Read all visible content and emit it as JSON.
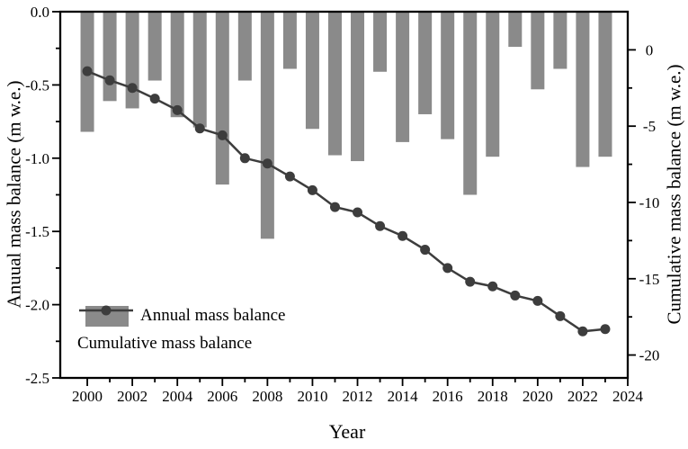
{
  "figure": {
    "colors": {
      "background": "#ffffff",
      "bar": "#8a8a8a",
      "line": "#3d3d3d",
      "axis": "#000000"
    }
  },
  "chart_data": {
    "type": "bar",
    "title": "",
    "categories": [
      2000,
      2001,
      2002,
      2003,
      2004,
      2005,
      2006,
      2007,
      2008,
      2009,
      2010,
      2011,
      2012,
      2013,
      2014,
      2015,
      2016,
      2017,
      2018,
      2019,
      2020,
      2021,
      2022,
      2023
    ],
    "series": [
      {
        "name": "Annual mass balance",
        "type": "bar",
        "axis": "left",
        "values": [
          -0.82,
          -0.61,
          -0.66,
          -0.47,
          -0.72,
          -0.79,
          -1.18,
          -0.47,
          -1.55,
          -0.39,
          -0.8,
          -0.98,
          -1.02,
          -0.41,
          -0.89,
          -0.7,
          -0.87,
          -1.25,
          -0.99,
          -0.24,
          -0.53,
          -0.39,
          -1.06,
          -0.99
        ]
      },
      {
        "name": "Cumulative mass balance",
        "type": "line",
        "axis": "right",
        "values": [
          -1.4,
          -2.0,
          -2.5,
          -3.2,
          -3.95,
          -5.15,
          -5.6,
          -7.1,
          -7.45,
          -8.3,
          -9.2,
          -10.3,
          -10.65,
          -11.55,
          -12.2,
          -13.1,
          -14.3,
          -15.2,
          -15.5,
          -16.1,
          -16.45,
          -17.45,
          -18.45,
          -18.3
        ]
      }
    ],
    "xlabel": "Year",
    "ylabel_left": "Anuual mass balance (m w.e.)",
    "ylabel_right": "Cumulative mass balance (m w.e.)",
    "xlim": [
      1998.8,
      2024
    ],
    "ylim_left": [
      -2.5,
      0
    ],
    "ylim_right": [
      -21.5,
      2.5
    ],
    "x_major_ticks": {
      "values": [
        2000,
        2002,
        2004,
        2006,
        2008,
        2010,
        2012,
        2014,
        2016,
        2018,
        2020,
        2022,
        2024
      ],
      "labels": [
        "2000",
        "2002",
        "2004",
        "2006",
        "2008",
        "2010",
        "2012",
        "2014",
        "2016",
        "2018",
        "2020",
        "2022",
        "2024"
      ]
    },
    "x_minor_ticks": [
      2001,
      2003,
      2005,
      2007,
      2009,
      2011,
      2013,
      2015,
      2017,
      2019,
      2021,
      2023
    ],
    "left_major_ticks": {
      "values": [
        0,
        -0.5,
        -1.0,
        -1.5,
        -2.0,
        -2.5
      ],
      "labels": [
        "0.0",
        "-0.5",
        "-1.0",
        "-1.5",
        "-2.0",
        "-2.5"
      ]
    },
    "left_minor_ticks": [
      -0.25,
      -0.75,
      -1.25,
      -1.75,
      -2.25
    ],
    "right_major_ticks": {
      "values": [
        0,
        -5,
        -10,
        -15,
        -20
      ],
      "labels": [
        "0",
        "-5",
        "-10",
        "-15",
        "-20"
      ]
    },
    "right_minor_ticks": [
      -2.5,
      -7.5,
      -12.5,
      -17.5
    ],
    "grid": false,
    "legend_position": "lower-left"
  }
}
